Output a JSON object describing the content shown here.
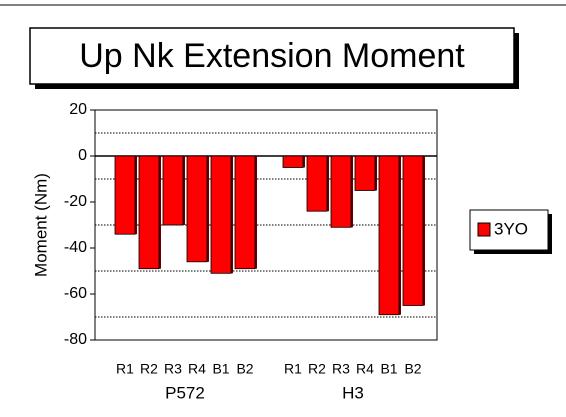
{
  "chart_data": {
    "type": "bar",
    "title": "Up Nk Extension Moment",
    "y_label": "Moment (Nm)",
    "categories": [
      "R1",
      "R2",
      "R3",
      "R4",
      "B1",
      "B2",
      null,
      "R1",
      "R2",
      "R3",
      "R4",
      "B1",
      "B2"
    ],
    "group_labels": [
      "P572",
      "H3"
    ],
    "series": [
      {
        "name": "3YO",
        "color": "#ff0000",
        "values": [
          -34,
          -49,
          -30,
          -46,
          -51,
          -49,
          null,
          -5,
          -24,
          -31,
          -15,
          -69,
          -65
        ]
      }
    ],
    "ylim": [
      -80,
      20
    ],
    "yticks": [
      -80,
      -60,
      -40,
      -20,
      0,
      20
    ],
    "yminor_grid": [
      -70,
      -50,
      -30,
      -10,
      10
    ],
    "legend": "right"
  }
}
